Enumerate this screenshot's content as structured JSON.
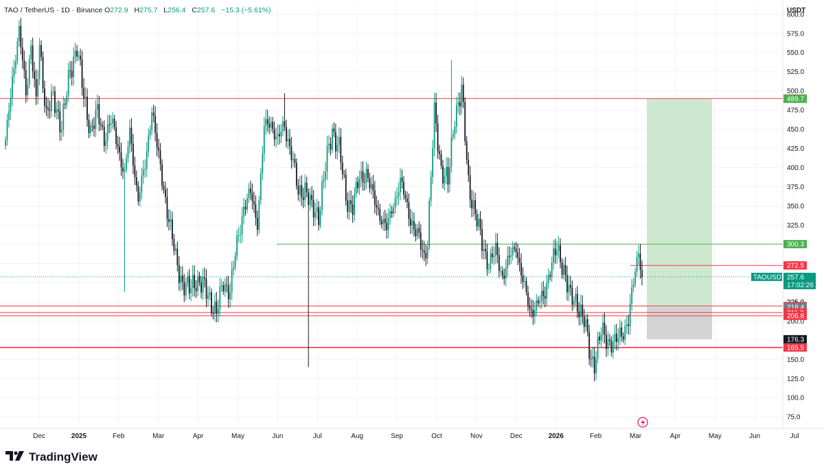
{
  "header": {
    "symbol": "TAO / TetherUS · 1D · Binance",
    "o_label": "O",
    "o_value": "272.9",
    "h_label": "H",
    "h_value": "275.7",
    "l_label": "L",
    "l_value": "256.4",
    "c_label": "C",
    "c_value": "257.6",
    "change": "−15.3 (−5.61%)"
  },
  "currency_label": "USDT",
  "brand": "TradingView",
  "colors": {
    "up": "#089981",
    "down": "#131722",
    "resistance": "#f23645",
    "support": "#4caf50",
    "zone_profit": "#c8e6c9",
    "zone_loss": "#cfcfcf"
  },
  "chart_data": {
    "type": "candlestick",
    "ylim": [
      60,
      615
    ],
    "y_ticks": [
      "600.0",
      "575.0",
      "550.0",
      "525.0",
      "500.0",
      "475.0",
      "450.0",
      "425.0",
      "400.0",
      "375.0",
      "350.0",
      "325.0",
      "300.0",
      "275.0",
      "250.0",
      "225.0",
      "200.0",
      "175.0",
      "150.0",
      "125.0",
      "100.0",
      "75.0"
    ],
    "x_labels": [
      "Dec",
      "2025",
      "Feb",
      "Mar",
      "Apr",
      "May",
      "Jun",
      "Jul",
      "Aug",
      "Sep",
      "Oct",
      "Nov",
      "Dec",
      "2026",
      "Feb",
      "Mar",
      "Apr",
      "May",
      "Jun",
      "Jul"
    ],
    "bold_x_labels": [
      "2025",
      "2026"
    ],
    "anchors": [
      [
        0,
        430
      ],
      [
        4,
        520
      ],
      [
        8,
        575
      ],
      [
        12,
        500
      ],
      [
        15,
        560
      ],
      [
        18,
        480
      ],
      [
        20,
        560
      ],
      [
        24,
        470
      ],
      [
        28,
        490
      ],
      [
        33,
        455
      ],
      [
        38,
        525
      ],
      [
        42,
        560
      ],
      [
        46,
        490
      ],
      [
        50,
        450
      ],
      [
        54,
        470
      ],
      [
        58,
        440
      ],
      [
        62,
        460
      ],
      [
        66,
        430
      ],
      [
        70,
        390
      ],
      [
        73,
        445
      ],
      [
        78,
        360
      ],
      [
        82,
        400
      ],
      [
        86,
        480
      ],
      [
        90,
        410
      ],
      [
        94,
        360
      ],
      [
        97,
        320
      ],
      [
        100,
        280
      ],
      [
        104,
        250
      ],
      [
        108,
        240
      ],
      [
        112,
        255
      ],
      [
        116,
        245
      ],
      [
        120,
        230
      ],
      [
        124,
        210
      ],
      [
        128,
        250
      ],
      [
        132,
        240
      ],
      [
        136,
        300
      ],
      [
        140,
        350
      ],
      [
        144,
        365
      ],
      [
        148,
        330
      ],
      [
        152,
        450
      ],
      [
        156,
        460
      ],
      [
        160,
        435
      ],
      [
        164,
        455
      ],
      [
        168,
        420
      ],
      [
        172,
        365
      ],
      [
        176,
        375
      ],
      [
        180,
        345
      ],
      [
        184,
        340
      ],
      [
        188,
        400
      ],
      [
        192,
        450
      ],
      [
        196,
        425
      ],
      [
        200,
        360
      ],
      [
        204,
        350
      ],
      [
        208,
        385
      ],
      [
        212,
        395
      ],
      [
        216,
        360
      ],
      [
        220,
        340
      ],
      [
        224,
        318
      ],
      [
        228,
        355
      ],
      [
        232,
        380
      ],
      [
        236,
        350
      ],
      [
        240,
        320
      ],
      [
        244,
        300
      ],
      [
        246,
        285
      ],
      [
        248,
        305
      ],
      [
        252,
        470
      ],
      [
        256,
        400
      ],
      [
        260,
        380
      ],
      [
        264,
        470
      ],
      [
        268,
        500
      ],
      [
        272,
        380
      ],
      [
        276,
        340
      ],
      [
        280,
        300
      ],
      [
        284,
        275
      ],
      [
        288,
        290
      ],
      [
        292,
        260
      ],
      [
        296,
        280
      ],
      [
        300,
        300
      ],
      [
        304,
        250
      ],
      [
        308,
        215
      ],
      [
        312,
        220
      ],
      [
        316,
        230
      ],
      [
        320,
        270
      ],
      [
        324,
        292
      ],
      [
        328,
        270
      ],
      [
        332,
        228
      ],
      [
        336,
        225
      ],
      [
        340,
        200
      ],
      [
        344,
        150
      ],
      [
        346,
        148
      ],
      [
        350,
        185
      ],
      [
        354,
        175
      ],
      [
        358,
        170
      ],
      [
        362,
        185
      ],
      [
        366,
        200
      ],
      [
        370,
        265
      ],
      [
        372,
        295
      ],
      [
        374,
        258
      ]
    ],
    "last_price": 257.6,
    "levels": [
      {
        "price": 490.1,
        "label": "490.1",
        "color": "#f23645"
      },
      {
        "price": 489.7,
        "label": "489.7",
        "color": "#4caf50"
      },
      {
        "price": 300.3,
        "label": "300.3",
        "color": "#4caf50"
      },
      {
        "price": 272.5,
        "label": "272.5",
        "color": "#f23645"
      },
      {
        "price": 219.6,
        "label": "219.6",
        "color": "#f23645"
      },
      {
        "price": 218.4,
        "label": "218.4",
        "color": "#787b86"
      },
      {
        "price": 211.2,
        "label": "211.2",
        "color": "#f23645"
      },
      {
        "price": 206.8,
        "label": "206.8",
        "color": "#f23645"
      },
      {
        "price": 176.3,
        "label": "176.3",
        "color": "#131722"
      },
      {
        "price": 165.5,
        "label": "165.5",
        "color": "#f23645"
      }
    ],
    "ticker_tag": {
      "label": "TAOUSDT",
      "price": "257.6",
      "countdown": "17:02:26"
    },
    "position_box": {
      "entry": 218.4,
      "target": 489.7,
      "stop": 176.3
    },
    "overlay": "225.0"
  }
}
